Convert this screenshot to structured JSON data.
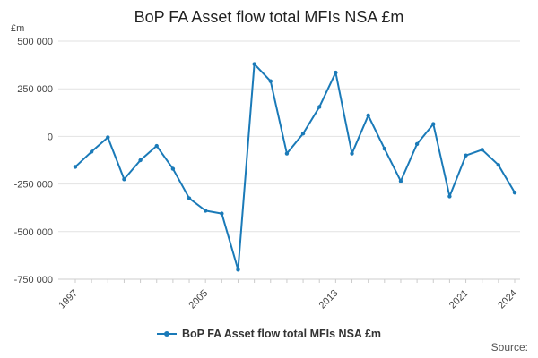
{
  "chart_data": {
    "type": "line",
    "title": "BoP FA Asset flow total MFIs NSA £m",
    "ylabel": "£m",
    "xlabel": "",
    "ylim": [
      -750000,
      500000
    ],
    "yticks": [
      500000,
      250000,
      0,
      -250000,
      -500000,
      -750000
    ],
    "ytick_labels": [
      "500 000",
      "250 000",
      "0",
      "-250 000",
      "-500 000",
      "-750 000"
    ],
    "xticks": [
      1997,
      2005,
      2013,
      2021,
      2024
    ],
    "x": [
      1997,
      1998,
      1999,
      2000,
      2001,
      2002,
      2003,
      2004,
      2005,
      2006,
      2007,
      2008,
      2009,
      2010,
      2011,
      2012,
      2013,
      2014,
      2015,
      2016,
      2017,
      2018,
      2019,
      2020,
      2021,
      2022,
      2023,
      2024
    ],
    "series": [
      {
        "name": "BoP FA Asset flow total MFIs NSA £m",
        "values": [
          -160000,
          -80000,
          -5000,
          -225000,
          -125000,
          -50000,
          -170000,
          -325000,
          -390000,
          -405000,
          -700000,
          380000,
          290000,
          -90000,
          15000,
          155000,
          335000,
          -90000,
          110000,
          -65000,
          -235000,
          -40000,
          65000,
          -315000,
          -100000,
          -70000,
          -150000,
          -295000
        ]
      }
    ],
    "legend_position": "bottom",
    "grid": true
  },
  "source_label": "Source:",
  "colors": {
    "series": "#1a7ab8",
    "grid": "#e2e2e2",
    "axis": "#cccccc"
  }
}
